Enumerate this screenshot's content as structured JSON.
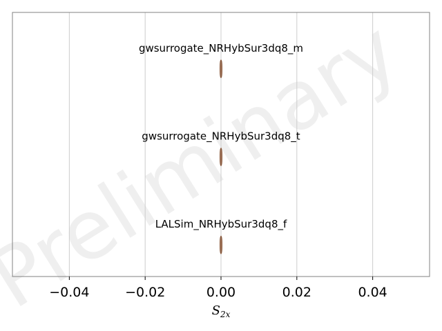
{
  "watermark": "Preliminary",
  "chart_data": {
    "type": "violin",
    "xlabel_main": "S",
    "xlabel_sub": "2x",
    "xlim": [
      -0.055,
      0.055
    ],
    "xticks": [
      -0.04,
      -0.02,
      0.0,
      0.02,
      0.04
    ],
    "xtick_labels": [
      "−0.04",
      "−0.02",
      "0.00",
      "0.02",
      "0.04"
    ],
    "grid_x": true,
    "series": [
      {
        "name": "gwsurrogate_NRHybSur3dq8_m",
        "center": 0.0,
        "halfwidth": 0.0003
      },
      {
        "name": "gwsurrogate_NRHybSur3dq8_t",
        "center": 0.0,
        "halfwidth": 0.0003
      },
      {
        "name": "LALSim_NRHybSur3dq8_f",
        "center": 0.0,
        "halfwidth": 0.0003
      }
    ],
    "colors": {
      "violin_fill": "#b98a6f",
      "violin_edge": "#8a5a3c",
      "grid": "#cccccc",
      "frame": "#808080"
    }
  }
}
